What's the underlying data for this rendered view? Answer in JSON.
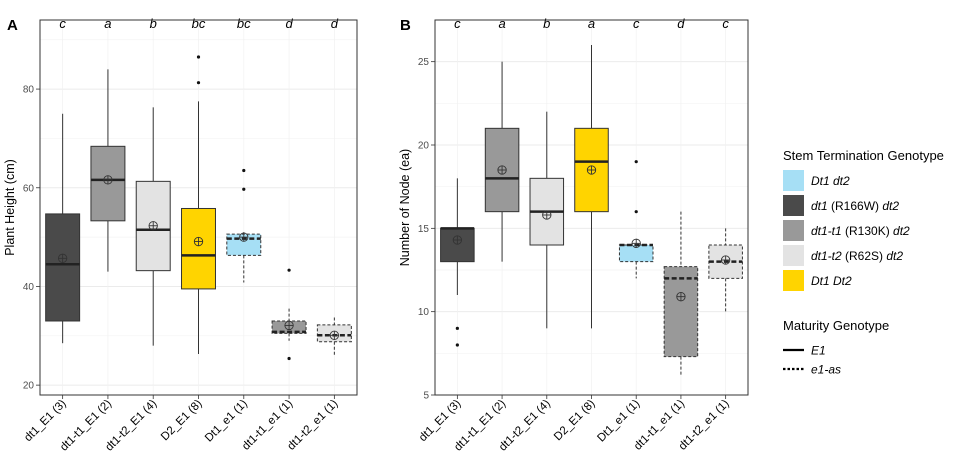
{
  "legend": {
    "stem_title": "Stem Termination Genotype",
    "stem_items": [
      {
        "key": "Dt1_dt2",
        "parts": [
          {
            "text": "Dt1 dt2",
            "italic": true
          }
        ],
        "color": "#a6dff5"
      },
      {
        "key": "dt1_R166W",
        "parts": [
          {
            "text": "dt1",
            "italic": true
          },
          {
            "text": " (R166W) ",
            "italic": false
          },
          {
            "text": "dt2",
            "italic": true
          }
        ],
        "color": "#4a4a4a"
      },
      {
        "key": "dt1_t1",
        "parts": [
          {
            "text": "dt1-t1",
            "italic": true
          },
          {
            "text": " (R130K) ",
            "italic": false
          },
          {
            "text": "dt2",
            "italic": true
          }
        ],
        "color": "#999999"
      },
      {
        "key": "dt1_t2",
        "parts": [
          {
            "text": "dt1-t2",
            "italic": true
          },
          {
            "text": " (R62S) ",
            "italic": false
          },
          {
            "text": "dt2",
            "italic": true
          }
        ],
        "color": "#e3e3e3"
      },
      {
        "key": "Dt1_Dt2",
        "parts": [
          {
            "text": "Dt1 Dt2",
            "italic": true
          }
        ],
        "color": "#ffd400"
      }
    ],
    "maturity_title": "Maturity Genotype",
    "maturity_items": [
      {
        "label": "E1",
        "linetype": "solid"
      },
      {
        "label": "e1-as",
        "linetype": "dotted"
      }
    ]
  },
  "chart_data": [
    {
      "panel": "A",
      "type": "boxplot",
      "ylabel": "Plant Height (cm)",
      "xlabel": "",
      "ylim": [
        18,
        94
      ],
      "yticks": [
        20,
        40,
        60,
        80
      ],
      "grid": true,
      "categories": [
        "dt1_E1 (3)",
        "dt1-t1_E1 (2)",
        "dt1-t2_E1 (4)",
        "D2_E1 (8)",
        "Dt1_e1 (1)",
        "dt1-t1_e1 (1)",
        "dt1-t2_e1 (1)"
      ],
      "letters": [
        "c",
        "a",
        "b",
        "bc",
        "bc",
        "d",
        "d"
      ],
      "fill_keys": [
        "dt1_R166W",
        "dt1_t1",
        "dt1_t2",
        "Dt1_Dt2",
        "Dt1_dt2",
        "dt1_t1",
        "dt1_t2"
      ],
      "linetypes": [
        "solid",
        "solid",
        "solid",
        "solid",
        "dotted",
        "dotted",
        "dotted"
      ],
      "boxes": [
        {
          "whisker_low": 28.5,
          "q1": 33,
          "median": 44.5,
          "q3": 54.7,
          "whisker_high": 75,
          "mean": 45.7,
          "outliers": []
        },
        {
          "whisker_low": 43,
          "q1": 53.3,
          "median": 61.6,
          "q3": 68.4,
          "whisker_high": 84,
          "mean": 61.6,
          "outliers": []
        },
        {
          "whisker_low": 28,
          "q1": 43.2,
          "median": 51.5,
          "q3": 61.3,
          "whisker_high": 76.3,
          "mean": 52.3,
          "outliers": []
        },
        {
          "whisker_low": 26.3,
          "q1": 39.5,
          "median": 46.3,
          "q3": 55.8,
          "whisker_high": 77.5,
          "mean": 49.1,
          "outliers": [
            81.3,
            86.5
          ]
        },
        {
          "whisker_low": 40.8,
          "q1": 46.3,
          "median": 49.7,
          "q3": 50.6,
          "whisker_high": 51,
          "mean": 50,
          "outliers": [
            59.7,
            63.5
          ]
        },
        {
          "whisker_low": 29,
          "q1": 30.5,
          "median": 30.8,
          "q3": 33,
          "whisker_high": 35.5,
          "mean": 32.1,
          "outliers": [
            25.4,
            43.3
          ]
        },
        {
          "whisker_low": 26,
          "q1": 28.8,
          "median": 30.1,
          "q3": 32.2,
          "whisker_high": 33.7,
          "mean": 30.1,
          "outliers": []
        }
      ]
    },
    {
      "panel": "B",
      "type": "boxplot",
      "ylabel": "Number of Node (ea)",
      "xlabel": "",
      "ylim": [
        5,
        27.5
      ],
      "yticks": [
        5,
        10,
        15,
        20,
        25
      ],
      "grid": true,
      "categories": [
        "dt1_E1 (3)",
        "dt1-t1_E1 (2)",
        "dt1-t2_E1 (4)",
        "D2_E1 (8)",
        "Dt1_e1 (1)",
        "dt1-t1_e1 (1)",
        "dt1-t2_e1 (1)"
      ],
      "letters": [
        "c",
        "a",
        "b",
        "a",
        "c",
        "d",
        "c"
      ],
      "fill_keys": [
        "dt1_R166W",
        "dt1_t1",
        "dt1_t2",
        "Dt1_Dt2",
        "Dt1_dt2",
        "dt1_t1",
        "dt1_t2"
      ],
      "linetypes": [
        "solid",
        "solid",
        "solid",
        "solid",
        "dotted",
        "dotted",
        "dotted"
      ],
      "boxes": [
        {
          "whisker_low": 11,
          "q1": 13,
          "median": 15,
          "q3": 15,
          "whisker_high": 18,
          "mean": 14.3,
          "outliers": [
            9,
            8
          ]
        },
        {
          "whisker_low": 13,
          "q1": 16,
          "median": 18,
          "q3": 21,
          "whisker_high": 25,
          "mean": 18.5,
          "outliers": []
        },
        {
          "whisker_low": 9,
          "q1": 14,
          "median": 16,
          "q3": 18,
          "whisker_high": 22,
          "mean": 15.8,
          "outliers": []
        },
        {
          "whisker_low": 9,
          "q1": 16,
          "median": 19,
          "q3": 21,
          "whisker_high": 26,
          "mean": 18.5,
          "outliers": []
        },
        {
          "whisker_low": 12,
          "q1": 13,
          "median": 14,
          "q3": 14,
          "whisker_high": 14,
          "mean": 14.1,
          "outliers": [
            16,
            19
          ]
        },
        {
          "whisker_low": 6.2,
          "q1": 7.3,
          "median": 12,
          "q3": 12.7,
          "whisker_high": 16,
          "mean": 10.9,
          "outliers": []
        },
        {
          "whisker_low": 10,
          "q1": 12,
          "median": 13,
          "q3": 14,
          "whisker_high": 15,
          "mean": 13.1,
          "outliers": []
        }
      ]
    }
  ]
}
